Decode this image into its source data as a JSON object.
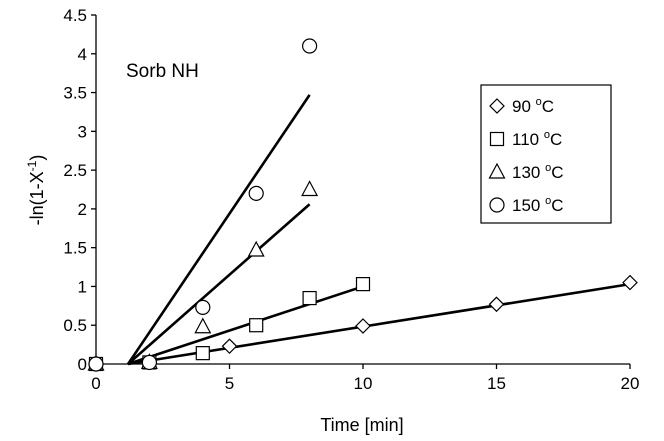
{
  "chart_data": {
    "type": "scatter",
    "xlabel": "Time [min]",
    "ylabel": {
      "main": "-ln(1-X",
      "sup": "-1",
      "close": ")"
    },
    "annotation": "Sorb NH",
    "xlim": [
      0,
      20
    ],
    "ylim": [
      0,
      4.5
    ],
    "xticks": [
      0,
      5,
      10,
      15,
      20
    ],
    "yticks": [
      0,
      0.5,
      1,
      1.5,
      2,
      2.5,
      3,
      3.5,
      4,
      4.5
    ],
    "grid": false,
    "legend_position": "right",
    "series": [
      {
        "name": {
          "value": "90",
          "unit": "C"
        },
        "marker": "diamond",
        "points": [
          [
            0,
            0
          ],
          [
            2,
            0.02
          ],
          [
            5,
            0.23
          ],
          [
            10,
            0.49
          ],
          [
            15,
            0.77
          ],
          [
            20,
            1.05
          ]
        ],
        "fit": [
          [
            1.2,
            0
          ],
          [
            20,
            1.03
          ]
        ]
      },
      {
        "name": {
          "value": "110",
          "unit": "C"
        },
        "marker": "square",
        "points": [
          [
            0,
            0
          ],
          [
            2,
            0.02
          ],
          [
            4,
            0.14
          ],
          [
            6,
            0.5
          ],
          [
            8,
            0.85
          ],
          [
            10,
            1.03
          ]
        ],
        "fit": [
          [
            1.2,
            0
          ],
          [
            10,
            1.0
          ]
        ]
      },
      {
        "name": {
          "value": "130",
          "unit": "C"
        },
        "marker": "triangle",
        "points": [
          [
            0,
            0
          ],
          [
            2,
            0.02
          ],
          [
            4,
            0.48
          ],
          [
            6,
            1.47
          ],
          [
            8,
            2.25
          ]
        ],
        "fit": [
          [
            1.2,
            0
          ],
          [
            8,
            2.06
          ]
        ]
      },
      {
        "name": {
          "value": "150",
          "unit": "C"
        },
        "marker": "circle",
        "points": [
          [
            0,
            0
          ],
          [
            2,
            0.02
          ],
          [
            4,
            0.73
          ],
          [
            6,
            2.2
          ],
          [
            8,
            4.1
          ]
        ],
        "fit": [
          [
            1.2,
            0
          ],
          [
            8,
            3.47
          ]
        ]
      }
    ],
    "degree_symbol": "o"
  }
}
